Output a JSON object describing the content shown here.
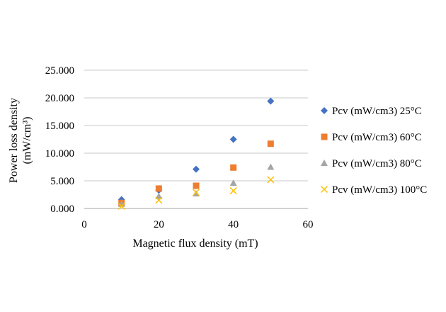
{
  "chart_data": {
    "type": "scatter",
    "title": "",
    "xlabel": "Magnetic flux density (mT)",
    "ylabel_line1": "Power loss density",
    "ylabel_line2": "(mW/cm³)",
    "xlim": [
      0,
      60
    ],
    "ylim": [
      0,
      25
    ],
    "x_ticks": [
      0,
      20,
      40,
      60
    ],
    "x_tick_labels": [
      "0",
      "20",
      "40",
      "60"
    ],
    "y_ticks": [
      0,
      5,
      10,
      15,
      20,
      25
    ],
    "y_tick_labels": [
      "0.000",
      "5.000",
      "10.000",
      "15.000",
      "20.000",
      "25.000"
    ],
    "grid": "horizontal",
    "legend_position": "right",
    "series": [
      {
        "name": "Pcv (mW/cm3) 25°C",
        "marker": "diamond",
        "color": "#4472C4",
        "x": [
          10,
          20,
          30,
          40,
          50
        ],
        "y": [
          1.6,
          3.3,
          7.1,
          12.5,
          19.4
        ]
      },
      {
        "name": "Pcv (mW/cm3) 60°C",
        "marker": "square",
        "color": "#ED7D31",
        "x": [
          10,
          20,
          30,
          40,
          50
        ],
        "y": [
          1.0,
          3.6,
          4.1,
          7.4,
          11.7
        ]
      },
      {
        "name": "Pcv (mW/cm3) 80°C",
        "marker": "triangle",
        "color": "#A5A5A5",
        "x": [
          10,
          20,
          30,
          40,
          50
        ],
        "y": [
          0.8,
          2.2,
          2.7,
          4.6,
          7.5
        ]
      },
      {
        "name": "Pcv (mW/cm3) 100°C",
        "marker": "x",
        "color": "#FFC000",
        "x": [
          10,
          20,
          30,
          40,
          50
        ],
        "y": [
          0.4,
          1.5,
          2.9,
          3.2,
          5.2
        ]
      }
    ]
  }
}
